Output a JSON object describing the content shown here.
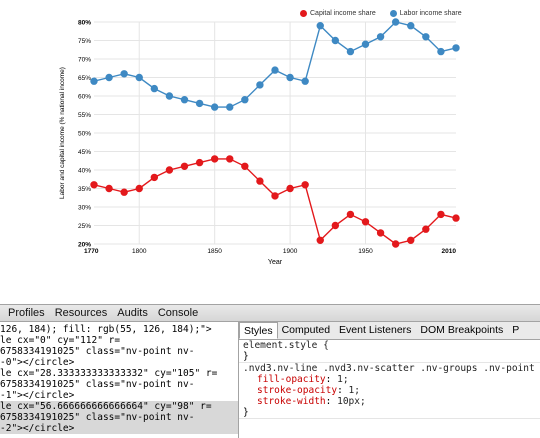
{
  "chart_data": {
    "type": "line",
    "ylabel": "Labor and capital income (% national income)",
    "xlabel": "Year",
    "ylim": [
      20,
      80
    ],
    "xlim": [
      1770,
      2010
    ],
    "y_ticks": [
      "20%",
      "25%",
      "30%",
      "35%",
      "40%",
      "45%",
      "50%",
      "55%",
      "60%",
      "65%",
      "70%",
      "75%",
      "80%"
    ],
    "x_ticks": [
      "1770",
      "1800",
      "1850",
      "1900",
      "1950",
      "2010"
    ],
    "grid": true,
    "legend_position": "top-right",
    "series": [
      {
        "name": "Capital income share",
        "color": "#e3191c",
        "x": [
          1770,
          1780,
          1790,
          1800,
          1810,
          1820,
          1830,
          1840,
          1850,
          1860,
          1870,
          1880,
          1890,
          1900,
          1910,
          1920,
          1930,
          1940,
          1950,
          1960,
          1970,
          1980,
          1990,
          2000,
          2010
        ],
        "values": [
          36,
          35,
          34,
          35,
          38,
          40,
          41,
          42,
          43,
          43,
          41,
          37,
          33,
          35,
          36,
          21,
          25,
          28,
          26,
          23,
          20,
          21,
          24,
          28,
          27
        ]
      },
      {
        "name": "Labor income share",
        "color": "#3e89c3",
        "x": [
          1770,
          1780,
          1790,
          1800,
          1810,
          1820,
          1830,
          1840,
          1850,
          1860,
          1870,
          1880,
          1890,
          1900,
          1910,
          1920,
          1930,
          1940,
          1950,
          1960,
          1970,
          1980,
          1990,
          2000,
          2010
        ],
        "values": [
          64,
          65,
          66,
          65,
          62,
          60,
          59,
          58,
          57,
          57,
          59,
          63,
          67,
          65,
          64,
          79,
          75,
          72,
          74,
          76,
          80,
          79,
          76,
          72,
          73
        ]
      }
    ]
  },
  "devtools": {
    "tabs": [
      "Profiles",
      "Resources",
      "Audits",
      "Console"
    ],
    "dom_lines": [
      "126, 184); fill: rgb(55, 126, 184);\">",
      "le cx=\"0\" cy=\"112\" r=",
      "6758334191025\" class=\"nv-point nv-",
      "-0\"></circle>",
      "le cx=\"28.333333333333332\" cy=\"105\" r=",
      "6758334191025\" class=\"nv-point nv-",
      "-1\"></circle>",
      "le cx=\"56.666666666666664\" cy=\"98\" r=",
      "6758334191025\" class=\"nv-point nv-",
      "-2\"></circle>"
    ],
    "sub_tabs": [
      "Styles",
      "Computed",
      "Event Listeners",
      "DOM Breakpoints",
      "P"
    ],
    "element_style": "element.style {",
    "close_brace": "}",
    "rule_selector": ".nvd3.nv-line .nvd3.nv-scatter .nv-groups .nv-point",
    "props": [
      {
        "name": "fill-opacity",
        "value": "1;"
      },
      {
        "name": "stroke-opacity",
        "value": "1;"
      },
      {
        "name": "stroke-width",
        "value": "10px;"
      }
    ],
    "rule_close": "}"
  }
}
